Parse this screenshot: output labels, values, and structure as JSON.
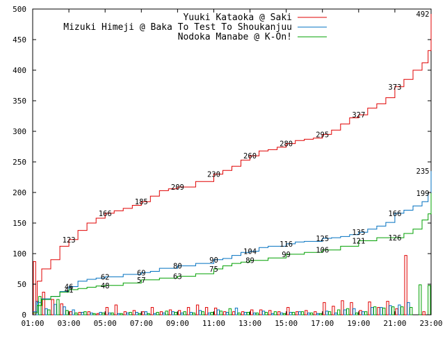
{
  "chart_data": {
    "type": "line",
    "x_ticks": [
      "01:00",
      "03:00",
      "05:00",
      "07:00",
      "09:00",
      "11:00",
      "13:00",
      "15:00",
      "17:00",
      "19:00",
      "21:00",
      "23:00"
    ],
    "xlim": [
      "01:00",
      "23:00"
    ],
    "y_ticks": [
      0,
      50,
      100,
      150,
      200,
      250,
      300,
      350,
      400,
      450,
      500
    ],
    "ylim": [
      0,
      500
    ],
    "grid": false,
    "legend": "top-right",
    "series": [
      {
        "name": "Yuuki Kataoka @ Saki",
        "color": "#e00000",
        "cumulative": [
          [
            "01:00",
            3
          ],
          [
            "01:15",
            55
          ],
          [
            "01:30",
            75
          ],
          [
            "02:00",
            90
          ],
          [
            "02:30",
            112
          ],
          [
            "03:00",
            123
          ],
          [
            "03:30",
            138
          ],
          [
            "04:00",
            150
          ],
          [
            "04:30",
            158
          ],
          [
            "05:00",
            166
          ],
          [
            "05:30",
            170
          ],
          [
            "06:00",
            174
          ],
          [
            "06:30",
            179
          ],
          [
            "07:00",
            185
          ],
          [
            "07:30",
            194
          ],
          [
            "08:00",
            203
          ],
          [
            "08:30",
            206
          ],
          [
            "09:00",
            209
          ],
          [
            "10:00",
            218
          ],
          [
            "11:00",
            230
          ],
          [
            "11:30",
            236
          ],
          [
            "12:00",
            243
          ],
          [
            "12:30",
            253
          ],
          [
            "13:00",
            260
          ],
          [
            "13:30",
            268
          ],
          [
            "14:00",
            270
          ],
          [
            "14:30",
            274
          ],
          [
            "15:00",
            280
          ],
          [
            "15:30",
            285
          ],
          [
            "16:00",
            287
          ],
          [
            "16:30",
            289
          ],
          [
            "17:00",
            295
          ],
          [
            "17:30",
            302
          ],
          [
            "18:00",
            312
          ],
          [
            "18:30",
            322
          ],
          [
            "19:00",
            327
          ],
          [
            "19:30",
            338
          ],
          [
            "20:00",
            345
          ],
          [
            "20:30",
            355
          ],
          [
            "21:00",
            373
          ],
          [
            "21:30",
            385
          ],
          [
            "22:00",
            400
          ],
          [
            "22:30",
            412
          ],
          [
            "22:50",
            432
          ],
          [
            "23:00",
            492
          ]
        ],
        "hourly": [
          87,
          37,
          25,
          18,
          5,
          4,
          5,
          2,
          12,
          16,
          5,
          7,
          5,
          12,
          5,
          8,
          7,
          12,
          16,
          12,
          11,
          5,
          5,
          5,
          8,
          8,
          7,
          5,
          12,
          5,
          7,
          5,
          20,
          14,
          23,
          20,
          7,
          21,
          12,
          22,
          10,
          97,
          0,
          5
        ],
        "labels": [
          {
            "t": "03:00",
            "v": "123"
          },
          {
            "t": "05:00",
            "v": "166"
          },
          {
            "t": "07:00",
            "v": "185"
          },
          {
            "t": "09:00",
            "v": "209"
          },
          {
            "t": "11:00",
            "v": "230"
          },
          {
            "t": "13:00",
            "v": "260"
          },
          {
            "t": "15:00",
            "v": "280"
          },
          {
            "t": "17:00",
            "v": "295"
          },
          {
            "t": "19:00",
            "v": "327"
          },
          {
            "t": "21:00",
            "v": "373"
          },
          {
            "t": "23:00",
            "v": "492"
          }
        ]
      },
      {
        "name": "Mizuki Himeji @ Baka To Test To Shoukanjuu",
        "color": "#0070c0",
        "cumulative": [
          [
            "01:00",
            5
          ],
          [
            "01:15",
            20
          ],
          [
            "01:30",
            26
          ],
          [
            "02:00",
            30
          ],
          [
            "02:30",
            38
          ],
          [
            "03:00",
            46
          ],
          [
            "03:30",
            55
          ],
          [
            "04:00",
            58
          ],
          [
            "04:30",
            60
          ],
          [
            "05:00",
            62
          ],
          [
            "06:00",
            66
          ],
          [
            "07:00",
            69
          ],
          [
            "07:30",
            71
          ],
          [
            "08:00",
            76
          ],
          [
            "09:00",
            80
          ],
          [
            "10:00",
            84
          ],
          [
            "11:00",
            90
          ],
          [
            "11:30",
            92
          ],
          [
            "12:00",
            97
          ],
          [
            "12:30",
            102
          ],
          [
            "13:00",
            104
          ],
          [
            "13:30",
            110
          ],
          [
            "14:00",
            112
          ],
          [
            "15:00",
            116
          ],
          [
            "15:30",
            119
          ],
          [
            "16:00",
            120
          ],
          [
            "17:00",
            125
          ],
          [
            "17:30",
            126
          ],
          [
            "18:00",
            128
          ],
          [
            "18:30",
            131
          ],
          [
            "19:00",
            135
          ],
          [
            "19:30",
            140
          ],
          [
            "20:00",
            145
          ],
          [
            "20:30",
            151
          ],
          [
            "21:00",
            166
          ],
          [
            "21:30",
            171
          ],
          [
            "22:00",
            178
          ],
          [
            "22:30",
            185
          ],
          [
            "22:50",
            200
          ],
          [
            "23:00",
            235
          ]
        ],
        "hourly": [
          22,
          10,
          17,
          13,
          8,
          4,
          3,
          4,
          3,
          2,
          3,
          4,
          5,
          2,
          3,
          5,
          3,
          4,
          7,
          3,
          8,
          4,
          11,
          4,
          3,
          6,
          2,
          3,
          4,
          5,
          3,
          2,
          6,
          3,
          8,
          10,
          5,
          12,
          12,
          15,
          16,
          20,
          0,
          0
        ],
        "labels": [
          {
            "t": "03:00",
            "v": "46"
          },
          {
            "t": "05:00",
            "v": "62"
          },
          {
            "t": "07:00",
            "v": "69"
          },
          {
            "t": "09:00",
            "v": "80"
          },
          {
            "t": "11:00",
            "v": "90"
          },
          {
            "t": "13:00",
            "v": "104"
          },
          {
            "t": "15:00",
            "v": "116"
          },
          {
            "t": "17:00",
            "v": "125"
          },
          {
            "t": "19:00",
            "v": "135"
          },
          {
            "t": "21:00",
            "v": "166"
          },
          {
            "t": "23:00",
            "v": "235"
          }
        ]
      },
      {
        "name": "Nodoka Manabe @ K-On!",
        "color": "#00a000",
        "cumulative": [
          [
            "01:00",
            3
          ],
          [
            "01:15",
            15
          ],
          [
            "01:30",
            25
          ],
          [
            "02:00",
            30
          ],
          [
            "02:30",
            37
          ],
          [
            "03:00",
            41
          ],
          [
            "03:30",
            43
          ],
          [
            "04:00",
            45
          ],
          [
            "04:30",
            47
          ],
          [
            "05:00",
            48
          ],
          [
            "06:00",
            52
          ],
          [
            "07:00",
            57
          ],
          [
            "08:00",
            60
          ],
          [
            "09:00",
            63
          ],
          [
            "10:00",
            67
          ],
          [
            "11:00",
            75
          ],
          [
            "11:30",
            80
          ],
          [
            "12:00",
            84
          ],
          [
            "12:30",
            86
          ],
          [
            "13:00",
            89
          ],
          [
            "14:00",
            93
          ],
          [
            "15:00",
            99
          ],
          [
            "16:00",
            102
          ],
          [
            "17:00",
            106
          ],
          [
            "18:00",
            112
          ],
          [
            "19:00",
            121
          ],
          [
            "20:00",
            126
          ],
          [
            "21:00",
            126
          ],
          [
            "21:30",
            133
          ],
          [
            "22:00",
            140
          ],
          [
            "22:30",
            155
          ],
          [
            "22:50",
            165
          ],
          [
            "23:00",
            199
          ]
        ],
        "hourly": [
          30,
          8,
          25,
          7,
          3,
          5,
          2,
          3,
          3,
          2,
          4,
          2,
          2,
          4,
          6,
          4,
          5,
          3,
          5,
          4,
          6,
          10,
          3,
          4,
          3,
          4,
          5,
          2,
          4,
          5,
          3,
          2,
          5,
          8,
          10,
          3,
          5,
          13,
          11,
          13,
          13,
          12,
          49,
          48
        ],
        "labels": [
          {
            "t": "03:00",
            "v": "41"
          },
          {
            "t": "05:00",
            "v": "48"
          },
          {
            "t": "07:00",
            "v": "57"
          },
          {
            "t": "09:00",
            "v": "63"
          },
          {
            "t": "11:00",
            "v": "75"
          },
          {
            "t": "13:00",
            "v": "89"
          },
          {
            "t": "15:00",
            "v": "99"
          },
          {
            "t": "17:00",
            "v": "106"
          },
          {
            "t": "19:00",
            "v": "121"
          },
          {
            "t": "21:00",
            "v": "126"
          },
          {
            "t": "23:00",
            "v": "199"
          }
        ]
      }
    ]
  }
}
